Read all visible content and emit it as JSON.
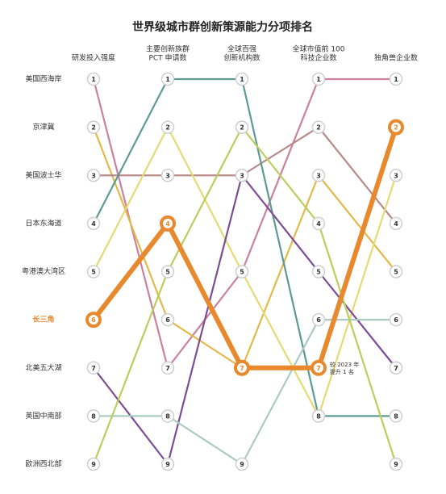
{
  "chart_data": {
    "type": "bump",
    "title": "世界级城市群创新策源能力分项排名",
    "categories": [
      [
        "研发投入强度"
      ],
      [
        "主要创新族群",
        "PCT 申请数"
      ],
      [
        "全球百强",
        "创新机构数"
      ],
      [
        "全球市值前 100",
        "科技企业数"
      ],
      [
        "独角兽企业数"
      ]
    ],
    "ylim": [
      1,
      9
    ],
    "series": [
      {
        "name": "美国西海岸",
        "color": "#c9819e",
        "values": [
          1,
          7,
          5,
          1,
          1
        ]
      },
      {
        "name": "京津冀",
        "color": "#e2b94a",
        "values": [
          2,
          6,
          7,
          3,
          5
        ]
      },
      {
        "name": "美国波士华",
        "color": "#b98a8a",
        "values": [
          3,
          3,
          3,
          2,
          4
        ]
      },
      {
        "name": "日本东海道",
        "color": "#5e9a94",
        "values": [
          4,
          1,
          1,
          8,
          8
        ]
      },
      {
        "name": "粤港澳大湾区",
        "color": "#e6da72",
        "values": [
          5,
          2,
          5,
          8,
          3
        ]
      },
      {
        "name": "长三角",
        "color": "#e8892e",
        "values": [
          6,
          4,
          7,
          7,
          2
        ],
        "highlight": true
      },
      {
        "name": "北美五大湖",
        "color": "#7d4d94",
        "values": [
          7,
          9,
          3,
          5,
          7
        ]
      },
      {
        "name": "英国中南部",
        "color": "#abcac2",
        "values": [
          8,
          8,
          9,
          6,
          6
        ]
      },
      {
        "name": "欧洲西北部",
        "color": "#bccd5e",
        "values": [
          9,
          5,
          2,
          4,
          9
        ]
      }
    ],
    "annotation": [
      "较 2023 年",
      "提升 1 名"
    ]
  }
}
